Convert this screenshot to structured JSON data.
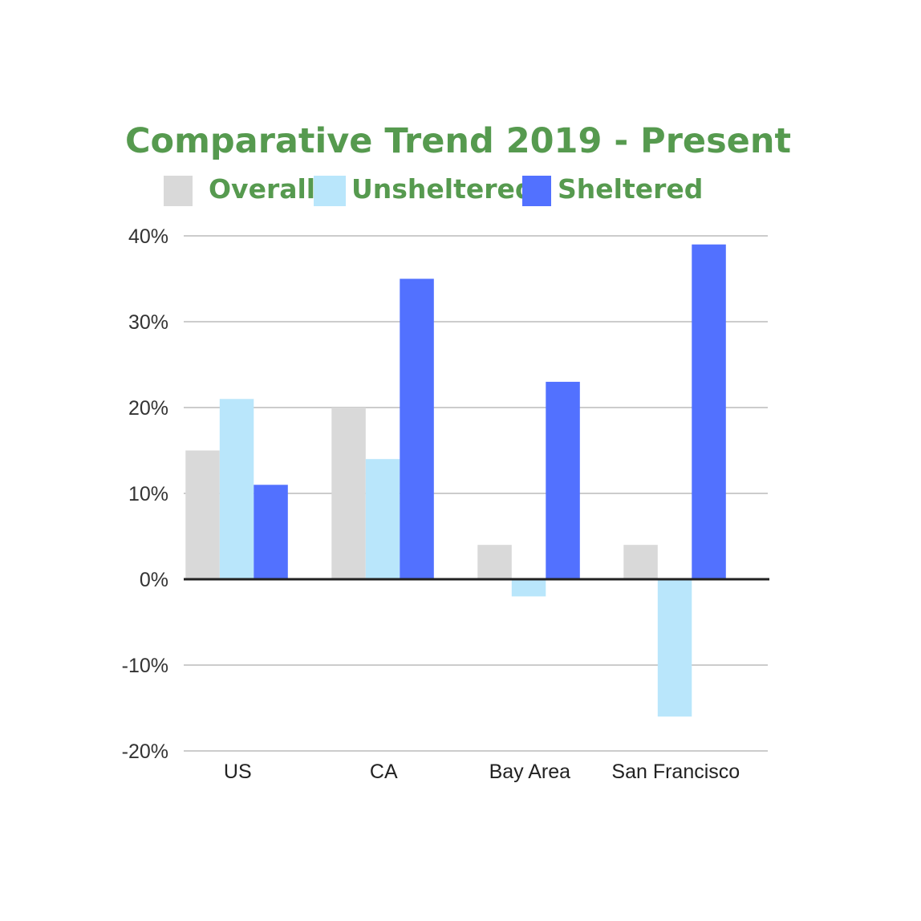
{
  "colors": {
    "title": "#569a4f",
    "grid": "#cccccc",
    "zero_line": "#222222"
  },
  "chart_data": {
    "type": "bar",
    "title": "Comparative Trend 2019 - Present",
    "xlabel": "",
    "ylabel": "",
    "categories": [
      "US",
      "CA",
      "Bay Area",
      "San Francisco"
    ],
    "series": [
      {
        "name": "Overall",
        "color": "#d9d9d9",
        "values": [
          15,
          20,
          4,
          4
        ]
      },
      {
        "name": "Unsheltered",
        "color": "#b9e6fb",
        "values": [
          21,
          14,
          -2,
          -16
        ]
      },
      {
        "name": "Sheltered",
        "color": "#5271ff",
        "values": [
          11,
          35,
          23,
          39
        ]
      }
    ],
    "ylim": [
      -20,
      40
    ],
    "yticks": [
      40,
      30,
      20,
      10,
      0,
      -10,
      -20
    ],
    "ytick_labels": [
      "40%",
      "30%",
      "20%",
      "10%",
      "0%",
      "-10%",
      "-20%"
    ],
    "grid": true,
    "legend_position": "top"
  }
}
